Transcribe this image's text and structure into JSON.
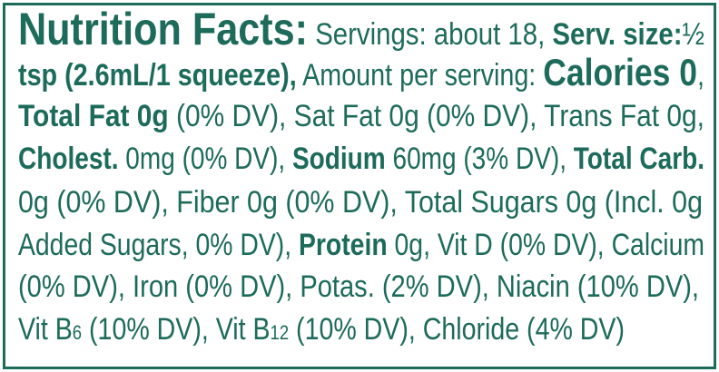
{
  "title": "Nutrition Facts:",
  "lines": [
    [
      {
        "text": " Servings: about 18, "
      },
      {
        "text": "Serv. size:",
        "bold": true
      },
      {
        "text": "½"
      }
    ],
    [
      {
        "text": "tsp (2.6mL/1 squeeze),",
        "bold": true
      },
      {
        "text": " Amount per serving: "
      },
      {
        "text": "Calories 0",
        "bold": true,
        "size": "large"
      },
      {
        "text": ","
      }
    ],
    [
      {
        "text": "Total Fat 0g",
        "bold": true
      },
      {
        "text": " (0% DV), Sat Fat 0g (0% DV), Trans Fat 0g,"
      }
    ],
    [
      {
        "text": "Cholest.",
        "bold": true
      },
      {
        "text": " 0mg (0% DV), "
      },
      {
        "text": "Sodium",
        "bold": true
      },
      {
        "text": " 60mg (3% DV), "
      },
      {
        "text": "Total Carb.",
        "bold": true
      }
    ],
    [
      {
        "text": "0g (0% DV), Fiber 0g (0% DV), Total Sugars 0g (Incl. 0g"
      }
    ],
    [
      {
        "text": "Added Sugars, 0% DV), "
      },
      {
        "text": "Protein",
        "bold": true
      },
      {
        "text": " 0g, Vit D (0% DV), Calcium"
      }
    ],
    [
      {
        "text": "(0% DV), Iron (0% DV), Potas. (2% DV), Niacin (10% DV),"
      }
    ],
    [
      {
        "text": "Vit B"
      },
      {
        "text": "6",
        "size": "small"
      },
      {
        "text": " (10% DV), Vit B"
      },
      {
        "text": "12",
        "size": "small"
      },
      {
        "text": " (10% DV), Chloride (4% DV)"
      }
    ]
  ]
}
